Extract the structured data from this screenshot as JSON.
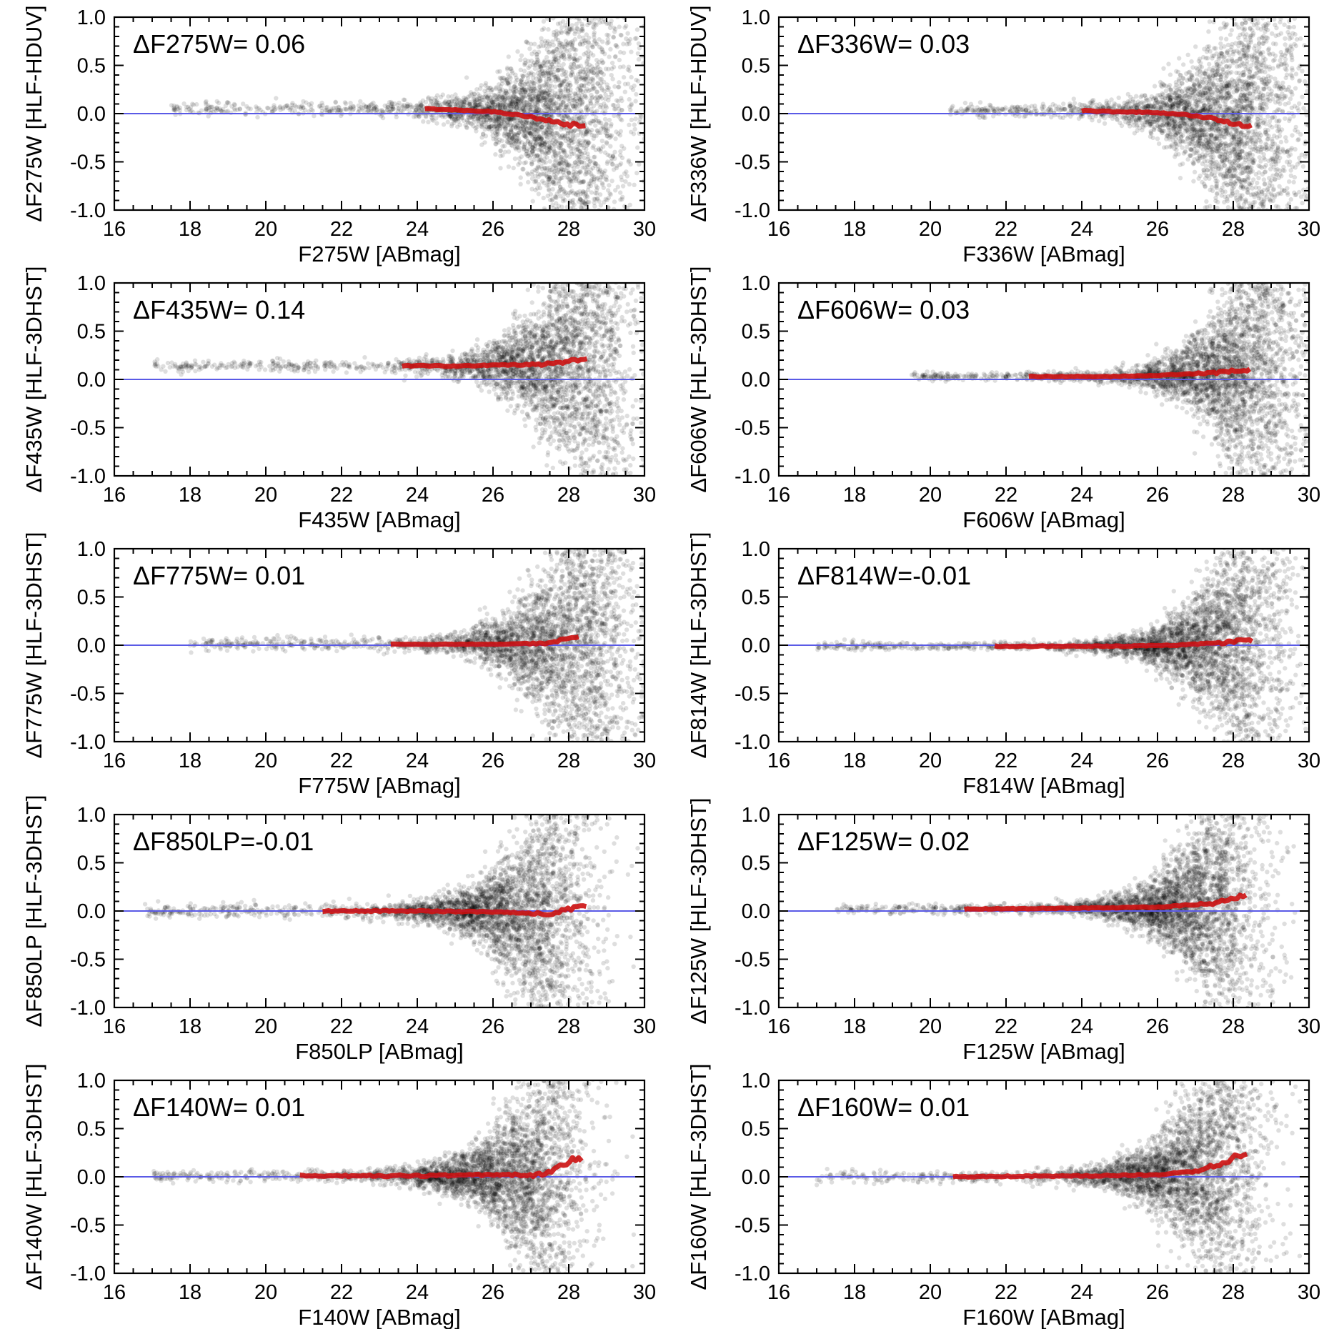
{
  "figure": {
    "colors": {
      "points": "#000000",
      "zero_line": "#5a5ae6",
      "median": "#cc1111"
    },
    "panels": [
      {
        "title": "ΔF275W= 0.06",
        "xlabel": "F275W [ABmag]",
        "ylabel": "ΔF275W [HLF-HDUV]",
        "med_start": 24.2,
        "med_end": 28.5,
        "med_knots": [
          [
            24.2,
            0.05
          ],
          [
            25,
            0.04
          ],
          [
            26,
            0.02
          ],
          [
            26.8,
            -0.02
          ],
          [
            27.5,
            -0.08
          ],
          [
            28,
            -0.12
          ],
          [
            28.5,
            -0.12
          ]
        ],
        "noise_amp": 0.02,
        "spread_a": 0.035,
        "spread_b": 0.5,
        "turn": 27.3,
        "bias": -0.05,
        "xmin": 17.5,
        "xmax": 30,
        "peak": 28.2,
        "width": 1.8
      },
      {
        "title": "ΔF336W= 0.03",
        "xlabel": "F336W [ABmag]",
        "ylabel": "ΔF336W [HLF-HDUV]",
        "med_start": 24.0,
        "med_end": 28.5,
        "med_knots": [
          [
            24,
            0.03
          ],
          [
            25,
            0.02
          ],
          [
            26,
            0.01
          ],
          [
            27,
            -0.02
          ],
          [
            27.8,
            -0.08
          ],
          [
            28.5,
            -0.14
          ]
        ],
        "noise_amp": 0.02,
        "spread_a": 0.03,
        "spread_b": 0.5,
        "turn": 27.5,
        "bias": -0.05,
        "xmin": 20.5,
        "xmax": 30,
        "peak": 28.5,
        "width": 1.6
      },
      {
        "title": "ΔF435W= 0.14",
        "xlabel": "F435W [ABmag]",
        "ylabel": "ΔF435W [HLF-3DHST]",
        "med_start": 23.6,
        "med_end": 28.5,
        "med_knots": [
          [
            23.6,
            0.14
          ],
          [
            25,
            0.14
          ],
          [
            26.5,
            0.15
          ],
          [
            27.5,
            0.16
          ],
          [
            28.5,
            0.21
          ]
        ],
        "noise_amp": 0.02,
        "spread_a": 0.03,
        "spread_b": 0.5,
        "turn": 27.5,
        "bias": 0.1,
        "xmin": 17.0,
        "xmax": 30,
        "peak": 28.4,
        "width": 1.8
      },
      {
        "title": "ΔF606W= 0.03",
        "xlabel": "F606W [ABmag]",
        "ylabel": "ΔF606W [HLF-3DHST]",
        "med_start": 22.6,
        "med_end": 28.5,
        "med_knots": [
          [
            22.6,
            0.03
          ],
          [
            25,
            0.03
          ],
          [
            26.5,
            0.05
          ],
          [
            27.5,
            0.07
          ],
          [
            28.5,
            0.1
          ]
        ],
        "noise_amp": 0.015,
        "spread_a": 0.02,
        "spread_b": 0.5,
        "turn": 27.8,
        "bias": 0.05,
        "xmin": 19.5,
        "xmax": 30,
        "peak": 28.5,
        "width": 1.6
      },
      {
        "title": "ΔF775W= 0.01",
        "xlabel": "F775W [ABmag]",
        "ylabel": "ΔF775W [HLF-3DHST]",
        "med_start": 23.3,
        "med_end": 28.3,
        "med_knots": [
          [
            23.3,
            0.01
          ],
          [
            26,
            0.01
          ],
          [
            27.5,
            0.02
          ],
          [
            28,
            0.08
          ],
          [
            28.3,
            0.09
          ]
        ],
        "noise_amp": 0.01,
        "spread_a": 0.03,
        "spread_b": 0.5,
        "turn": 27.5,
        "bias": 0.0,
        "xmin": 18.0,
        "xmax": 30,
        "peak": 28.4,
        "width": 1.8
      },
      {
        "title": "ΔF814W=-0.01",
        "xlabel": "F814W [ABmag]",
        "ylabel": "ΔF814W [HLF-3DHST]",
        "med_start": 21.7,
        "med_end": 28.5,
        "med_knots": [
          [
            21.7,
            -0.01
          ],
          [
            25,
            -0.01
          ],
          [
            26.5,
            0.0
          ],
          [
            27.8,
            0.03
          ],
          [
            28.5,
            0.05
          ]
        ],
        "noise_amp": 0.015,
        "spread_a": 0.02,
        "spread_b": 0.5,
        "turn": 27.5,
        "bias": 0.0,
        "xmin": 17.0,
        "xmax": 30,
        "peak": 28.0,
        "width": 1.8
      },
      {
        "title": "ΔF850LP=-0.01",
        "xlabel": "F850LP [ABmag]",
        "ylabel": "ΔF850LP [HLF-3DHST]",
        "med_start": 21.5,
        "med_end": 28.5,
        "med_knots": [
          [
            21.5,
            0.0
          ],
          [
            24,
            0.0
          ],
          [
            26,
            -0.01
          ],
          [
            27.5,
            -0.03
          ],
          [
            28,
            0.02
          ],
          [
            28.5,
            0.07
          ]
        ],
        "noise_amp": 0.02,
        "spread_a": 0.035,
        "spread_b": 0.5,
        "turn": 26.8,
        "bias": -0.05,
        "xmin": 16.8,
        "xmax": 30,
        "peak": 27.2,
        "width": 1.8
      },
      {
        "title": "ΔF125W= 0.02",
        "xlabel": "F125W [ABmag]",
        "ylabel": "ΔF125W [HLF-3DHST]",
        "med_start": 20.9,
        "med_end": 28.4,
        "med_knots": [
          [
            20.9,
            0.02
          ],
          [
            24,
            0.03
          ],
          [
            26,
            0.04
          ],
          [
            27.5,
            0.08
          ],
          [
            28.4,
            0.17
          ]
        ],
        "noise_amp": 0.015,
        "spread_a": 0.025,
        "spread_b": 0.55,
        "turn": 27.2,
        "bias": 0.05,
        "xmin": 17.5,
        "xmax": 29.8,
        "peak": 27.4,
        "width": 1.7
      },
      {
        "title": "ΔF140W= 0.01",
        "xlabel": "F140W [ABmag]",
        "ylabel": "ΔF140W [HLF-3DHST]",
        "med_start": 20.9,
        "med_end": 28.4,
        "med_knots": [
          [
            20.9,
            0.01
          ],
          [
            24,
            0.01
          ],
          [
            26,
            0.02
          ],
          [
            27.3,
            0.02
          ],
          [
            27.8,
            0.1
          ],
          [
            28,
            0.17
          ],
          [
            28.4,
            0.16
          ]
        ],
        "noise_amp": 0.03,
        "spread_a": 0.03,
        "spread_b": 0.55,
        "turn": 26.8,
        "bias": 0.05,
        "xmin": 17.0,
        "xmax": 30,
        "peak": 27.0,
        "width": 1.8
      },
      {
        "title": "ΔF160W= 0.01",
        "xlabel": "F160W [ABmag]",
        "ylabel": "ΔF160W [HLF-3DHST]",
        "med_start": 20.6,
        "med_end": 28.4,
        "med_knots": [
          [
            20.6,
            0.0
          ],
          [
            24,
            0.01
          ],
          [
            26,
            0.02
          ],
          [
            27,
            0.06
          ],
          [
            27.8,
            0.15
          ],
          [
            28.1,
            0.22
          ],
          [
            28.4,
            0.22
          ]
        ],
        "noise_amp": 0.02,
        "spread_a": 0.03,
        "spread_b": 0.55,
        "turn": 27.0,
        "bias": 0.05,
        "xmin": 17.0,
        "xmax": 30,
        "peak": 27.4,
        "width": 1.7
      }
    ]
  },
  "chart_data": [
    {
      "type": "scatter",
      "title": "ΔF275W= 0.06",
      "xlabel": "F275W [ABmag]",
      "ylabel": "ΔF275W [HLF-HDUV]",
      "xlim": [
        16,
        30
      ],
      "ylim": [
        -1.0,
        1.0
      ],
      "xticks": [
        "16",
        "18",
        "20",
        "22",
        "24",
        "26",
        "28",
        "30"
      ],
      "yticks": [
        "-1.0",
        "-0.5",
        "0.0",
        "0.5",
        "1.0"
      ],
      "series": [
        {
          "name": "sources",
          "note": "scatter of matched sources widening toward faint magnitudes"
        },
        {
          "name": "running median",
          "x": [
            24.2,
            25,
            26,
            26.8,
            27.5,
            28,
            28.5
          ],
          "y": [
            0.05,
            0.04,
            0.02,
            -0.02,
            -0.08,
            -0.12,
            -0.12
          ]
        },
        {
          "name": "zero line",
          "y": 0.0
        }
      ]
    },
    {
      "type": "scatter",
      "title": "ΔF336W= 0.03",
      "xlabel": "F336W [ABmag]",
      "ylabel": "ΔF336W [HLF-HDUV]",
      "xlim": [
        16,
        30
      ],
      "ylim": [
        -1.0,
        1.0
      ],
      "xticks": [
        "16",
        "18",
        "20",
        "22",
        "24",
        "26",
        "28",
        "30"
      ],
      "yticks": [
        "-1.0",
        "-0.5",
        "0.0",
        "0.5",
        "1.0"
      ],
      "series": [
        {
          "name": "running median",
          "x": [
            24,
            25,
            26,
            27,
            27.8,
            28.5
          ],
          "y": [
            0.03,
            0.02,
            0.01,
            -0.02,
            -0.08,
            -0.14
          ]
        },
        {
          "name": "zero line",
          "y": 0.0
        }
      ]
    },
    {
      "type": "scatter",
      "title": "ΔF435W= 0.14",
      "xlabel": "F435W [ABmag]",
      "ylabel": "ΔF435W [HLF-3DHST]",
      "xlim": [
        16,
        30
      ],
      "ylim": [
        -1.0,
        1.0
      ],
      "xticks": [
        "16",
        "18",
        "20",
        "22",
        "24",
        "26",
        "28",
        "30"
      ],
      "yticks": [
        "-1.0",
        "-0.5",
        "0.0",
        "0.5",
        "1.0"
      ],
      "series": [
        {
          "name": "running median",
          "x": [
            23.6,
            25,
            26.5,
            27.5,
            28.5
          ],
          "y": [
            0.14,
            0.14,
            0.15,
            0.16,
            0.21
          ]
        },
        {
          "name": "zero line",
          "y": 0.0
        }
      ]
    },
    {
      "type": "scatter",
      "title": "ΔF606W= 0.03",
      "xlabel": "F606W [ABmag]",
      "ylabel": "ΔF606W [HLF-3DHST]",
      "xlim": [
        16,
        30
      ],
      "ylim": [
        -1.0,
        1.0
      ],
      "xticks": [
        "16",
        "18",
        "20",
        "22",
        "24",
        "26",
        "28",
        "30"
      ],
      "yticks": [
        "-1.0",
        "-0.5",
        "0.0",
        "0.5",
        "1.0"
      ],
      "series": [
        {
          "name": "running median",
          "x": [
            22.6,
            25,
            26.5,
            27.5,
            28.5
          ],
          "y": [
            0.03,
            0.03,
            0.05,
            0.07,
            0.1
          ]
        },
        {
          "name": "zero line",
          "y": 0.0
        }
      ]
    },
    {
      "type": "scatter",
      "title": "ΔF775W= 0.01",
      "xlabel": "F775W [ABmag]",
      "ylabel": "ΔF775W [HLF-3DHST]",
      "xlim": [
        16,
        30
      ],
      "ylim": [
        -1.0,
        1.0
      ],
      "xticks": [
        "16",
        "18",
        "20",
        "22",
        "24",
        "26",
        "28",
        "30"
      ],
      "yticks": [
        "-1.0",
        "-0.5",
        "0.0",
        "0.5",
        "1.0"
      ],
      "series": [
        {
          "name": "running median",
          "x": [
            23.3,
            26,
            27.5,
            28,
            28.3
          ],
          "y": [
            0.01,
            0.01,
            0.02,
            0.08,
            0.09
          ]
        },
        {
          "name": "zero line",
          "y": 0.0
        }
      ]
    },
    {
      "type": "scatter",
      "title": "ΔF814W=-0.01",
      "xlabel": "F814W [ABmag]",
      "ylabel": "ΔF814W [HLF-3DHST]",
      "xlim": [
        16,
        30
      ],
      "ylim": [
        -1.0,
        1.0
      ],
      "xticks": [
        "16",
        "18",
        "20",
        "22",
        "24",
        "26",
        "28",
        "30"
      ],
      "yticks": [
        "-1.0",
        "-0.5",
        "0.0",
        "0.5",
        "1.0"
      ],
      "series": [
        {
          "name": "running median",
          "x": [
            21.7,
            25,
            26.5,
            27.8,
            28.5
          ],
          "y": [
            -0.01,
            -0.01,
            0.0,
            0.03,
            0.05
          ]
        },
        {
          "name": "zero line",
          "y": 0.0
        }
      ]
    },
    {
      "type": "scatter",
      "title": "ΔF850LP=-0.01",
      "xlabel": "F850LP [ABmag]",
      "ylabel": "ΔF850LP [HLF-3DHST]",
      "xlim": [
        16,
        30
      ],
      "ylim": [
        -1.0,
        1.0
      ],
      "xticks": [
        "16",
        "18",
        "20",
        "22",
        "24",
        "26",
        "28",
        "30"
      ],
      "yticks": [
        "-1.0",
        "-0.5",
        "0.0",
        "0.5",
        "1.0"
      ],
      "series": [
        {
          "name": "running median",
          "x": [
            21.5,
            24,
            26,
            27.5,
            28,
            28.5
          ],
          "y": [
            0.0,
            0.0,
            -0.01,
            -0.03,
            0.02,
            0.07
          ]
        },
        {
          "name": "zero line",
          "y": 0.0
        }
      ]
    },
    {
      "type": "scatter",
      "title": "ΔF125W= 0.02",
      "xlabel": "F125W [ABmag]",
      "ylabel": "ΔF125W [HLF-3DHST]",
      "xlim": [
        16,
        30
      ],
      "ylim": [
        -1.0,
        1.0
      ],
      "xticks": [
        "16",
        "18",
        "20",
        "22",
        "24",
        "26",
        "28",
        "30"
      ],
      "yticks": [
        "-1.0",
        "-0.5",
        "0.0",
        "0.5",
        "1.0"
      ],
      "series": [
        {
          "name": "running median",
          "x": [
            20.9,
            24,
            26,
            27.5,
            28.4
          ],
          "y": [
            0.02,
            0.03,
            0.04,
            0.08,
            0.17
          ]
        },
        {
          "name": "zero line",
          "y": 0.0
        }
      ]
    },
    {
      "type": "scatter",
      "title": "ΔF140W= 0.01",
      "xlabel": "F140W [ABmag]",
      "ylabel": "ΔF140W [HLF-3DHST]",
      "xlim": [
        16,
        30
      ],
      "ylim": [
        -1.0,
        1.0
      ],
      "xticks": [
        "16",
        "18",
        "20",
        "22",
        "24",
        "26",
        "28",
        "30"
      ],
      "yticks": [
        "-1.0",
        "-0.5",
        "0.0",
        "0.5",
        "1.0"
      ],
      "series": [
        {
          "name": "running median",
          "x": [
            20.9,
            24,
            26,
            27.3,
            27.8,
            28,
            28.4
          ],
          "y": [
            0.01,
            0.01,
            0.02,
            0.02,
            0.1,
            0.17,
            0.16
          ]
        },
        {
          "name": "zero line",
          "y": 0.0
        }
      ]
    },
    {
      "type": "scatter",
      "title": "ΔF160W= 0.01",
      "xlabel": "F160W [ABmag]",
      "ylabel": "ΔF160W [HLF-3DHST]",
      "xlim": [
        16,
        30
      ],
      "ylim": [
        -1.0,
        1.0
      ],
      "xticks": [
        "16",
        "18",
        "20",
        "22",
        "24",
        "26",
        "28",
        "30"
      ],
      "yticks": [
        "-1.0",
        "-0.5",
        "0.0",
        "0.5",
        "1.0"
      ],
      "series": [
        {
          "name": "running median",
          "x": [
            20.6,
            24,
            26,
            27,
            27.8,
            28.1,
            28.4
          ],
          "y": [
            0.0,
            0.01,
            0.02,
            0.06,
            0.15,
            0.22,
            0.22
          ]
        },
        {
          "name": "zero line",
          "y": 0.0
        }
      ]
    }
  ],
  "axes": {
    "xlim": [
      16,
      30
    ],
    "ylim": [
      -1.0,
      1.0
    ],
    "xticks": [
      16,
      18,
      20,
      22,
      24,
      26,
      28,
      30
    ],
    "xtick_labels": [
      "16",
      "18",
      "20",
      "22",
      "24",
      "26",
      "28",
      "30"
    ],
    "yticks": [
      -1.0,
      -0.5,
      0.0,
      0.5,
      1.0
    ],
    "ytick_labels": [
      "-1.0",
      "-0.5",
      "0.0",
      "0.5",
      "1.0"
    ]
  }
}
